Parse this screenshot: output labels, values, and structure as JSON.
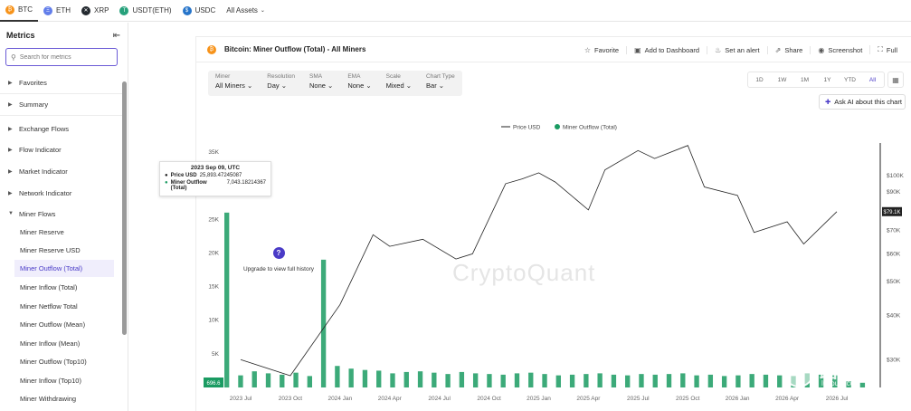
{
  "assets": {
    "tabs": [
      {
        "label": "BTC",
        "symbol": "₿",
        "color": "#f7931a"
      },
      {
        "label": "ETH",
        "symbol": "Ξ",
        "color": "#627eea"
      },
      {
        "label": "XRP",
        "symbol": "✕",
        "color": "#23292f"
      },
      {
        "label": "USDT(ETH)",
        "symbol": "T",
        "color": "#26a17b"
      },
      {
        "label": "USDC",
        "symbol": "$",
        "color": "#2775ca"
      }
    ],
    "all_assets": "All Assets"
  },
  "sidebar": {
    "title": "Metrics",
    "search_placeholder": "Search for metrics",
    "groups": [
      {
        "label": "Favorites"
      },
      {
        "label": "Summary"
      },
      {
        "label": "Exchange Flows"
      },
      {
        "label": "Flow Indicator"
      },
      {
        "label": "Market Indicator"
      },
      {
        "label": "Network Indicator"
      },
      {
        "label": "Miner Flows"
      }
    ],
    "miner_items": [
      "Miner Reserve",
      "Miner Reserve USD",
      "Miner Outflow (Total)",
      "Miner Inflow (Total)",
      "Miner Netflow Total",
      "Miner Outflow (Mean)",
      "Miner Inflow (Mean)",
      "Miner Outflow (Top10)",
      "Miner Inflow (Top10)",
      "Miner Withdrawing"
    ]
  },
  "chart_header": {
    "title": "Bitcoin: Miner Outflow (Total) - All Miners",
    "actions": [
      "Favorite",
      "Add to Dashboard",
      "Set an alert",
      "Share",
      "Screenshot",
      "Full"
    ]
  },
  "controls": [
    {
      "label": "Miner",
      "value": "All Miners ⌄"
    },
    {
      "label": "Resolution",
      "value": "Day ⌄"
    },
    {
      "label": "SMA",
      "value": "None ⌄"
    },
    {
      "label": "EMA",
      "value": "None ⌄"
    },
    {
      "label": "Scale",
      "value": "Mixed ⌄"
    },
    {
      "label": "Chart Type",
      "value": "Bar ⌄"
    }
  ],
  "ranges": [
    "1D",
    "1W",
    "1M",
    "1Y",
    "YTD",
    "All"
  ],
  "active_range": "All",
  "ask_ai": "Ask AI about this chart",
  "tooltip": {
    "date": "2023 Sep 09, UTC",
    "price_label": "Price USD",
    "price_value": "25,893.47245087",
    "outflow_label": "Miner Outflow (Total)",
    "outflow_value": "7,043.18214367"
  },
  "upgrade": {
    "text": "Upgrade to view full history"
  },
  "watermark": "CryptoQuant",
  "site_watermark": {
    "cn": "路由器",
    "en": "luyouqi.com"
  },
  "chart_data": {
    "type": "bar",
    "legend": [
      "Price USD",
      "Miner Outflow (Total)"
    ],
    "legend_position": "top-center",
    "colors": {
      "price": "#222222",
      "outflow": "#1a9b62"
    },
    "x_ticks": [
      "2023 Jul",
      "2023 Oct",
      "2024 Jan",
      "2024 Apr",
      "2024 Jul",
      "2024 Oct",
      "2025 Jan",
      "2025 Apr",
      "2025 Jul",
      "2025 Oct",
      "2026 Jan",
      "2026 Apr",
      "2026 Jul"
    ],
    "left_axis": {
      "ticks": [
        "35K",
        "30K",
        "25K",
        "20K",
        "15K",
        "10K",
        "5K"
      ],
      "ylim": [
        0,
        35000
      ],
      "current": "696.6"
    },
    "right_axis": {
      "scale": "log",
      "ticks": [
        "$100K",
        "$90K",
        "$80K",
        "$70K",
        "$60K",
        "$50K",
        "$40K",
        "$30K"
      ],
      "current": "$79.1K"
    },
    "series": [
      {
        "name": "Miner Outflow (Total)",
        "axis": "left",
        "values": [
          26000,
          1800,
          2400,
          2100,
          1900,
          2200,
          1700,
          19000,
          3200,
          2800,
          2600,
          2500,
          2100,
          2300,
          2400,
          2200,
          2000,
          2300,
          2100,
          2000,
          1900,
          2100,
          2200,
          2000,
          1800,
          1900,
          2000,
          2100,
          1900,
          1800,
          2000,
          1900,
          2000,
          2100,
          1800,
          1900,
          1700,
          1800,
          2000,
          1900,
          1800,
          1700,
          2100,
          1900,
          1800,
          900,
          700
        ]
      },
      {
        "name": "Price USD",
        "axis": "right",
        "x": [
          "2023 Jul",
          "2023 Oct",
          "2024 Jan",
          "2024 Mar",
          "2024 Apr",
          "2024 Jun",
          "2024 Aug",
          "2024 Sep",
          "2024 Nov",
          "2024 Dec",
          "2025 Jan",
          "2025 Feb",
          "2025 Apr",
          "2025 May",
          "2025 Jul",
          "2025 Aug",
          "2025 Oct",
          "2025 Nov",
          "2026 Jan",
          "2026 Feb",
          "2026 Apr",
          "2026 May",
          "2026 Jul"
        ],
        "values": [
          30000,
          27000,
          43000,
          68000,
          63000,
          66000,
          58000,
          60000,
          95000,
          98000,
          102000,
          96000,
          80000,
          104000,
          118000,
          112000,
          122000,
          93000,
          88000,
          69000,
          74000,
          64000,
          79100
        ]
      }
    ]
  }
}
